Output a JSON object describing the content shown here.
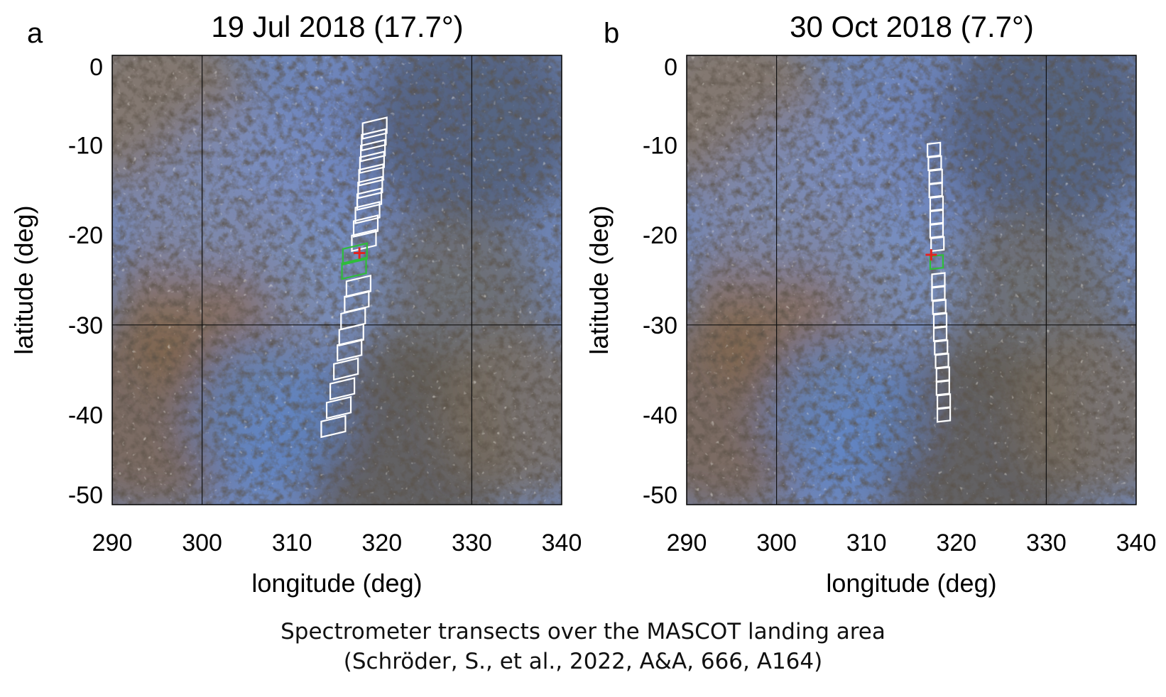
{
  "figure": {
    "caption_line1": "Spectrometer transects over the MASCOT landing area",
    "caption_line2": "(Schröder, S., et al., 2022, A&A, 666, A164)",
    "colors": {
      "footprint": "#ffffff",
      "selected_footprint": "#2ebd3a",
      "landing_marker": "#e3231f",
      "grid": "#111111",
      "surface_blue": "#6f86b8",
      "surface_brown": "#8a6e50"
    }
  },
  "chart_data": [
    {
      "type": "scatter",
      "panel_label": "a",
      "title": "19 Jul 2018 (17.7°)",
      "xlabel": "longitude (deg)",
      "ylabel": "latitude (deg)",
      "xlim": [
        290,
        340
      ],
      "ylim": [
        -50,
        0
      ],
      "xticks": [
        290,
        300,
        310,
        320,
        330,
        340
      ],
      "yticks": [
        0,
        -10,
        -20,
        -30,
        -40,
        -50
      ],
      "gridlines_x": [
        300,
        330
      ],
      "gridlines_y": [
        -30
      ],
      "landing_site": {
        "lon": 317.5,
        "lat": -22.0
      },
      "footprints": [
        {
          "lon": 319.2,
          "lat": -8.1
        },
        {
          "lon": 319.1,
          "lat": -9.4
        },
        {
          "lon": 319.0,
          "lat": -10.6
        },
        {
          "lon": 318.9,
          "lat": -11.9
        },
        {
          "lon": 318.8,
          "lat": -13.3
        },
        {
          "lon": 318.7,
          "lat": -14.7
        },
        {
          "lon": 318.6,
          "lat": -16.0
        },
        {
          "lon": 318.4,
          "lat": -17.5
        },
        {
          "lon": 318.2,
          "lat": -19.0
        },
        {
          "lon": 318.0,
          "lat": -20.6
        },
        {
          "lon": 317.4,
          "lat": -25.7
        },
        {
          "lon": 317.2,
          "lat": -27.4
        },
        {
          "lon": 316.8,
          "lat": -29.3
        },
        {
          "lon": 316.6,
          "lat": -31.1
        },
        {
          "lon": 316.4,
          "lat": -32.8
        },
        {
          "lon": 316.0,
          "lat": -34.9
        },
        {
          "lon": 315.6,
          "lat": -37.1
        },
        {
          "lon": 315.2,
          "lat": -39.2
        },
        {
          "lon": 314.6,
          "lat": -41.3
        }
      ],
      "selected_footprints": [
        {
          "lon": 317.0,
          "lat": -22.1
        },
        {
          "lon": 316.9,
          "lat": -23.7
        }
      ]
    },
    {
      "type": "scatter",
      "panel_label": "b",
      "title": "30 Oct 2018 (7.7°)",
      "xlabel": "longitude (deg)",
      "ylabel": "latitude (deg)",
      "xlim": [
        290,
        340
      ],
      "ylim": [
        -50,
        0
      ],
      "xticks": [
        290,
        300,
        310,
        320,
        330,
        340
      ],
      "yticks": [
        0,
        -10,
        -20,
        -30,
        -40,
        -50
      ],
      "gridlines_x": [
        300,
        330
      ],
      "gridlines_y": [
        -30
      ],
      "landing_site": {
        "lon": 317.2,
        "lat": -22.2
      },
      "footprints": [
        {
          "lon": 317.5,
          "lat": -10.5
        },
        {
          "lon": 317.6,
          "lat": -12.0
        },
        {
          "lon": 317.7,
          "lat": -13.5
        },
        {
          "lon": 317.7,
          "lat": -15.0
        },
        {
          "lon": 317.8,
          "lat": -16.5
        },
        {
          "lon": 317.8,
          "lat": -18.0
        },
        {
          "lon": 317.8,
          "lat": -19.5
        },
        {
          "lon": 317.9,
          "lat": -21.0
        },
        {
          "lon": 318.0,
          "lat": -25.0
        },
        {
          "lon": 318.0,
          "lat": -26.5
        },
        {
          "lon": 318.1,
          "lat": -28.0
        },
        {
          "lon": 318.2,
          "lat": -29.5
        },
        {
          "lon": 318.2,
          "lat": -31.0
        },
        {
          "lon": 318.3,
          "lat": -32.5
        },
        {
          "lon": 318.4,
          "lat": -34.0
        },
        {
          "lon": 318.5,
          "lat": -35.5
        },
        {
          "lon": 318.5,
          "lat": -37.0
        },
        {
          "lon": 318.6,
          "lat": -38.5
        },
        {
          "lon": 318.6,
          "lat": -40.0
        }
      ],
      "selected_footprints": [
        {
          "lon": 317.8,
          "lat": -23.0
        }
      ]
    }
  ]
}
